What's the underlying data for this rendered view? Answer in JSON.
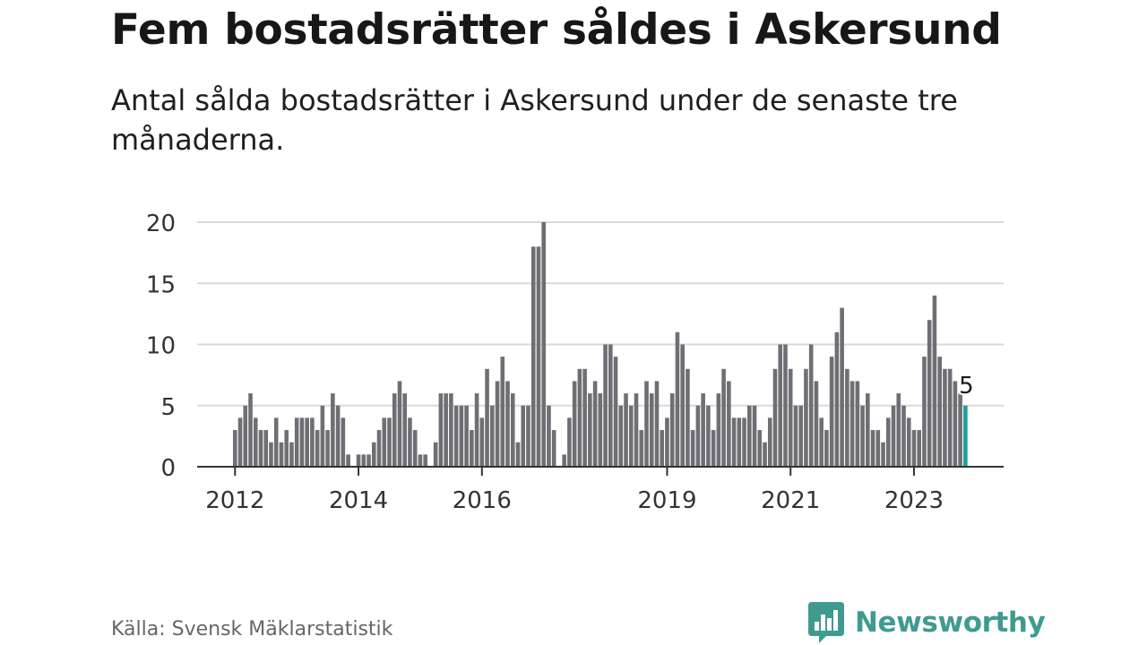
{
  "header": {
    "title": "Fem bostadsrätter såldes i Askersund",
    "subtitle": "Antal sålda bostadsrätter i Askersund under de senaste tre månaderna."
  },
  "footer": {
    "source": "Källa: Svensk Mäklarstatistik",
    "brand": "Newsworthy",
    "brand_icon": "newsworthy-logo-icon"
  },
  "colors": {
    "bar": "#6f6e75",
    "highlight": "#1a9e9a",
    "grid": "#d9d9d9",
    "axis": "#333333",
    "brand": "#3f9b90"
  },
  "chart_data": {
    "type": "bar",
    "ylim": [
      0,
      20
    ],
    "yticks": [
      "0",
      "5",
      "10",
      "15",
      "20"
    ],
    "xtick_labels": [
      {
        "label": "2012",
        "index": 0
      },
      {
        "label": "2014",
        "index": 24
      },
      {
        "label": "2016",
        "index": 48
      },
      {
        "label": "2019",
        "index": 84
      },
      {
        "label": "2021",
        "index": 108
      },
      {
        "label": "2023",
        "index": 132
      }
    ],
    "values": [
      3,
      4,
      5,
      6,
      4,
      3,
      3,
      2,
      4,
      2,
      3,
      2,
      4,
      4,
      4,
      4,
      3,
      5,
      3,
      6,
      5,
      4,
      1,
      0,
      1,
      1,
      1,
      2,
      3,
      4,
      4,
      6,
      7,
      6,
      4,
      3,
      1,
      1,
      0,
      2,
      6,
      6,
      6,
      5,
      5,
      5,
      3,
      6,
      4,
      8,
      5,
      7,
      9,
      7,
      6,
      2,
      5,
      5,
      18,
      18,
      20,
      5,
      3,
      0,
      1,
      4,
      7,
      8,
      8,
      6,
      7,
      6,
      10,
      10,
      9,
      5,
      6,
      5,
      6,
      3,
      7,
      6,
      7,
      3,
      4,
      6,
      11,
      10,
      8,
      3,
      5,
      6,
      5,
      3,
      6,
      8,
      7,
      4,
      4,
      4,
      5,
      5,
      3,
      2,
      4,
      8,
      10,
      10,
      8,
      5,
      5,
      8,
      10,
      7,
      4,
      3,
      9,
      11,
      13,
      8,
      7,
      7,
      5,
      6,
      3,
      3,
      2,
      4,
      5,
      6,
      5,
      4,
      3,
      3,
      9,
      12,
      14,
      9,
      8,
      8,
      7,
      6,
      5
    ],
    "highlight_index": 142,
    "annotation": "5"
  }
}
